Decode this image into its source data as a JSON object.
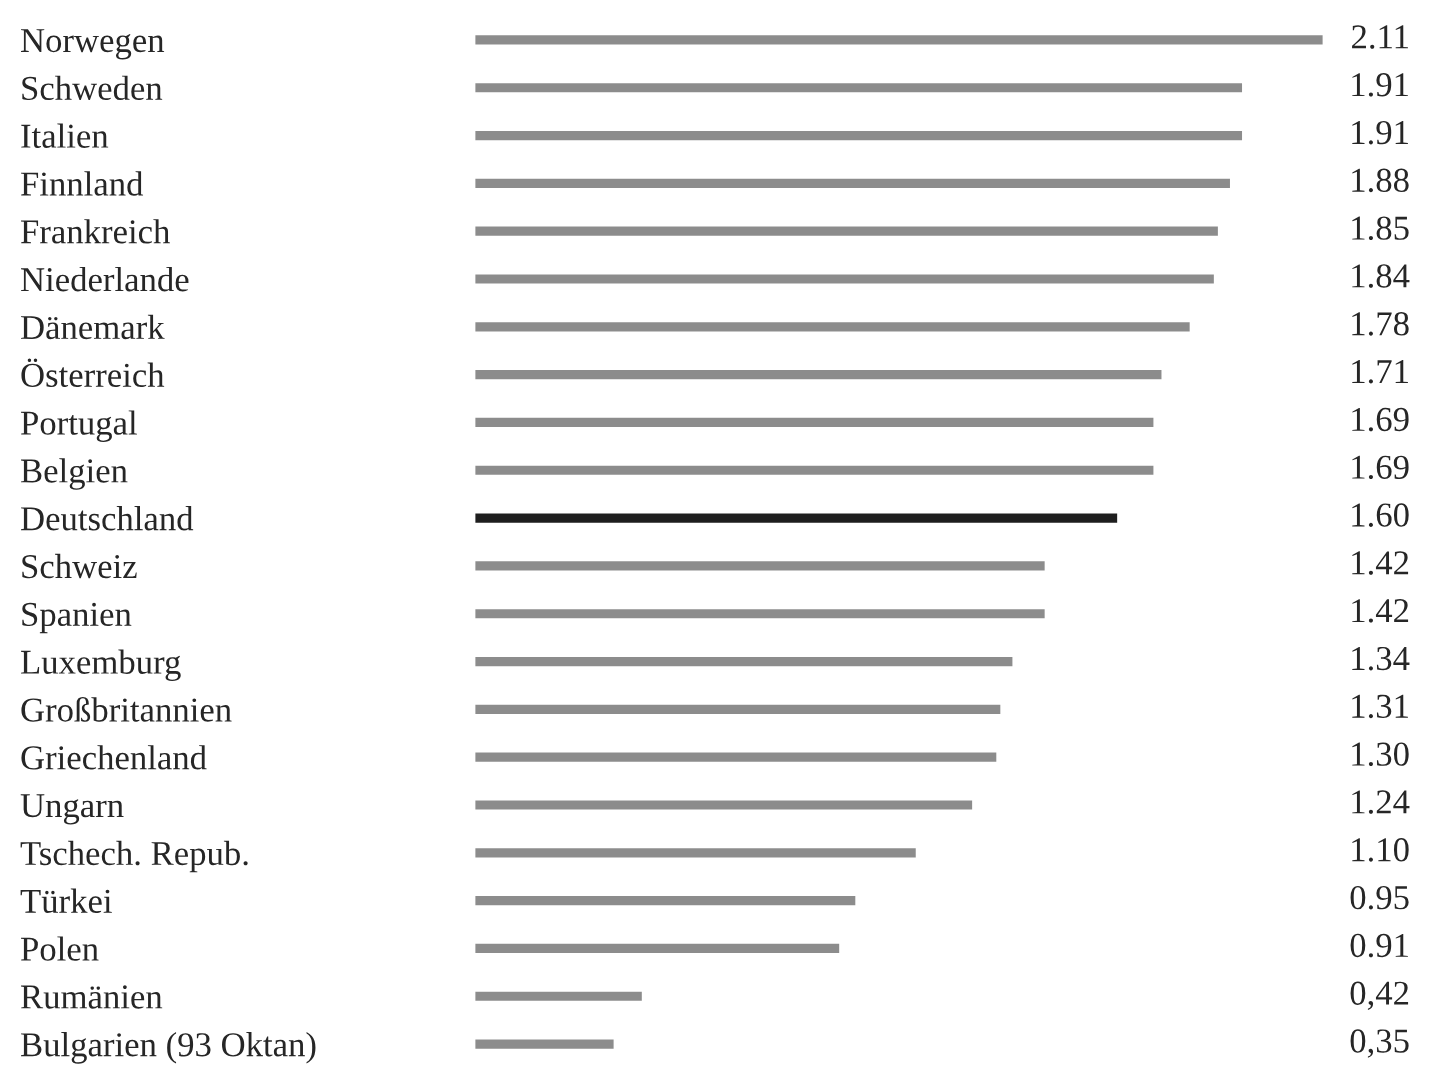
{
  "chart_data": {
    "type": "bar",
    "orientation": "horizontal",
    "categories": [
      "Norwegen",
      "Schweden",
      "Italien",
      "Finnland",
      "Frankreich",
      "Niederlande",
      "Dänemark",
      "Österreich",
      "Portugal",
      "Belgien",
      "Deutschland",
      "Schweiz",
      "Spanien",
      "Luxemburg",
      "Großbritannien",
      "Griechenland",
      "Ungarn",
      "Tschech. Repub.",
      "Türkei",
      "Polen",
      "Rumänien",
      "Bulgarien (93 Oktan)"
    ],
    "values": [
      2.11,
      1.91,
      1.91,
      1.88,
      1.85,
      1.84,
      1.78,
      1.71,
      1.69,
      1.69,
      1.6,
      1.42,
      1.42,
      1.34,
      1.31,
      1.3,
      1.24,
      1.1,
      0.95,
      0.91,
      0.42,
      0.35
    ],
    "value_labels": [
      "2.11",
      "1.91",
      "1.91",
      "1.88",
      "1.85",
      "1.84",
      "1.78",
      "1.71",
      "1.69",
      "1.69",
      "1.60",
      "1.42",
      "1.42",
      "1.34",
      "1.31",
      "1.30",
      "1.24",
      "1.10",
      "0.95",
      "0.91",
      "0,42",
      "0,35"
    ],
    "colors": [
      "#8c8c8c",
      "#8c8c8c",
      "#8c8c8c",
      "#8c8c8c",
      "#8c8c8c",
      "#8c8c8c",
      "#8c8c8c",
      "#8c8c8c",
      "#8c8c8c",
      "#8c8c8c",
      "#1e1e1e",
      "#8c8c8c",
      "#8c8c8c",
      "#8c8c8c",
      "#8c8c8c",
      "#8c8c8c",
      "#8c8c8c",
      "#8c8c8c",
      "#8c8c8c",
      "#8c8c8c",
      "#8c8c8c",
      "#8c8c8c"
    ],
    "xlim": [
      0,
      2.11
    ],
    "tick_labels": "y",
    "grid": false,
    "legend": false
  }
}
